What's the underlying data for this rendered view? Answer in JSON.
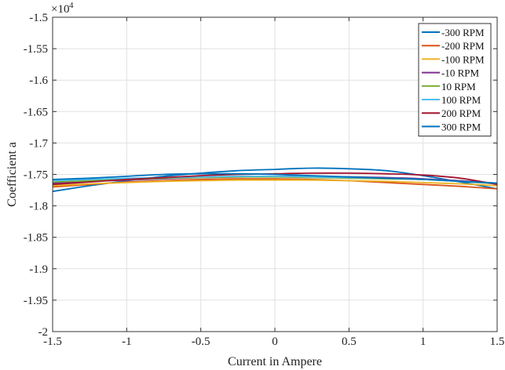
{
  "chart_data": {
    "type": "line",
    "title": "",
    "xlabel": "Current in Ampere",
    "ylabel": "Coefficient a",
    "y_exponent_base": "×10",
    "y_exponent_power": "4",
    "xlim": [
      -1.5,
      1.5
    ],
    "ylim": [
      -2.0,
      -1.5
    ],
    "x_ticks": [
      -1.5,
      -1,
      -0.5,
      0,
      0.5,
      1,
      1.5
    ],
    "x_tick_labels": [
      "-1.5",
      "-1",
      "-0.5",
      "0",
      "0.5",
      "1",
      "1.5"
    ],
    "y_ticks": [
      -1.5,
      -1.55,
      -1.6,
      -1.65,
      -1.7,
      -1.75,
      -1.8,
      -1.85,
      -1.9,
      -1.95,
      -2.0
    ],
    "y_tick_labels": [
      "-1.5",
      "-1.55",
      "-1.6",
      "-1.65",
      "-1.7",
      "-1.75",
      "-1.8",
      "-1.85",
      "-1.9",
      "-1.95",
      "-2"
    ],
    "grid": true,
    "legend_position": "top-right",
    "x": [
      -1.5,
      -1.25,
      -1.0,
      -0.75,
      -0.5,
      -0.25,
      0.0,
      0.25,
      0.5,
      0.75,
      1.0,
      1.25,
      1.5
    ],
    "series": [
      {
        "name": "-300 RPM",
        "color": "#0072BD",
        "values": [
          -1.777,
          -1.768,
          -1.76,
          -1.753,
          -1.748,
          -1.744,
          -1.742,
          -1.74,
          -1.741,
          -1.744,
          -1.752,
          -1.762,
          -1.773
        ]
      },
      {
        "name": "-200 RPM",
        "color": "#D95319",
        "values": [
          -1.77,
          -1.766,
          -1.762,
          -1.76,
          -1.758,
          -1.757,
          -1.757,
          -1.758,
          -1.76,
          -1.763,
          -1.766,
          -1.769,
          -1.773
        ]
      },
      {
        "name": "-100 RPM",
        "color": "#EDB120",
        "values": [
          -1.768,
          -1.765,
          -1.763,
          -1.761,
          -1.76,
          -1.759,
          -1.759,
          -1.759,
          -1.76,
          -1.761,
          -1.763,
          -1.765,
          -1.768
        ]
      },
      {
        "name": "-10 RPM",
        "color": "#7E2F8E",
        "values": [
          -1.764,
          -1.761,
          -1.759,
          -1.757,
          -1.755,
          -1.754,
          -1.753,
          -1.753,
          -1.754,
          -1.755,
          -1.757,
          -1.76,
          -1.764
        ]
      },
      {
        "name": "10 RPM",
        "color": "#77AC30",
        "values": [
          -1.762,
          -1.76,
          -1.758,
          -1.756,
          -1.755,
          -1.754,
          -1.754,
          -1.755,
          -1.756,
          -1.757,
          -1.758,
          -1.761,
          -1.765
        ]
      },
      {
        "name": "100 RPM",
        "color": "#4DBEEE",
        "values": [
          -1.76,
          -1.758,
          -1.756,
          -1.755,
          -1.754,
          -1.753,
          -1.753,
          -1.754,
          -1.755,
          -1.756,
          -1.758,
          -1.761,
          -1.764
        ]
      },
      {
        "name": "200 RPM",
        "color": "#A2142F",
        "values": [
          -1.766,
          -1.762,
          -1.758,
          -1.755,
          -1.752,
          -1.75,
          -1.749,
          -1.748,
          -1.748,
          -1.749,
          -1.751,
          -1.756,
          -1.766
        ]
      },
      {
        "name": "300 RPM",
        "color": "#0072BD",
        "values": [
          -1.758,
          -1.756,
          -1.753,
          -1.75,
          -1.749,
          -1.749,
          -1.75,
          -1.752,
          -1.754,
          -1.756,
          -1.758,
          -1.761,
          -1.764
        ]
      }
    ]
  }
}
